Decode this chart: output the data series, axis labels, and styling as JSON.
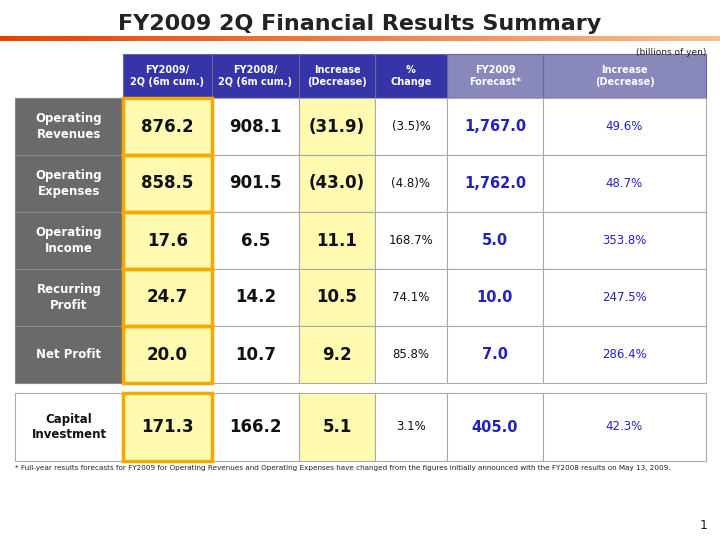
{
  "title": "FY2009 2Q Financial Results Summary",
  "subtitle": "(billions of yen)",
  "footnote": "* Full-year results forecasts for FY2009 for Operating Revenues and Operating Expenses have changed from the figures initially announced with the FY2008 results on May 13, 2009.",
  "headers": [
    "FY2009/\n2Q (6m cum.)",
    "FY2008/\n2Q (6m cum.)",
    "Increase\n(Decrease)",
    "%\nChange",
    "FY2009\nForecast*",
    "Increase\n(Decrease)"
  ],
  "row_labels": [
    "Operating\nRevenues",
    "Operating\nExpenses",
    "Operating\nIncome",
    "Recurring\nProfit",
    "Net Profit"
  ],
  "row_label_cap": "Capital\nInvestment",
  "rows": [
    [
      "876.2",
      "908.1",
      "(31.9)",
      "(3.5)%",
      "1,767.0",
      "49.6%"
    ],
    [
      "858.5",
      "901.5",
      "(43.0)",
      "(4.8)%",
      "1,762.0",
      "48.7%"
    ],
    [
      "17.6",
      "6.5",
      "11.1",
      "168.7%",
      "5.0",
      "353.8%"
    ],
    [
      "24.7",
      "14.2",
      "10.5",
      "74.1%",
      "10.0",
      "247.5%"
    ],
    [
      "20.0",
      "10.7",
      "9.2",
      "85.8%",
      "7.0",
      "286.4%"
    ]
  ],
  "row_cap": [
    "171.3",
    "166.2",
    "5.1",
    "3.1%",
    "405.0",
    "42.3%"
  ],
  "header_bg_dark_blue": "#3535a8",
  "header_bg_light_blue": "#8888bb",
  "row_label_bg": "#6a6a6a",
  "cell_bg_yellow": "#fffab0",
  "cell_bg_white": "#ffffff",
  "orange_border": "#f5a800",
  "orange_line_left": "#e84000",
  "orange_line_right": "#f8c090",
  "blue_text": "#2222bb",
  "black_text": "#111111",
  "white_text": "#ffffff",
  "dark_text": "#222222",
  "grid_color": "#aaaaaa",
  "page_num": "1"
}
